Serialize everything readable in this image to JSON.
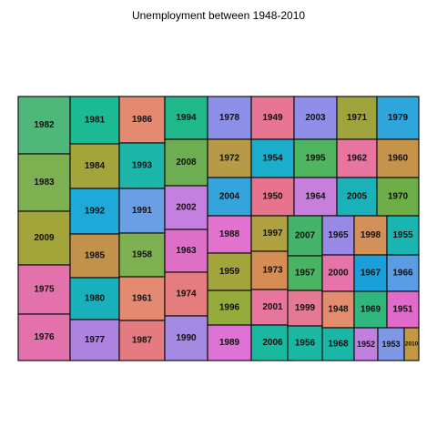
{
  "chart_data": {
    "type": "treemap",
    "title": "Unemployment between 1948-2010",
    "tiles": [
      {
        "label": "1982",
        "color": "#4FB77A"
      },
      {
        "label": "1983",
        "color": "#7DB050"
      },
      {
        "label": "2009",
        "color": "#A3A43A"
      },
      {
        "label": "1975",
        "color": "#E372AC"
      },
      {
        "label": "1976",
        "color": "#E372AC"
      },
      {
        "label": "1981",
        "color": "#1BBA93"
      },
      {
        "label": "1984",
        "color": "#A3A43A"
      },
      {
        "label": "1992",
        "color": "#1FA9D8"
      },
      {
        "label": "1985",
        "color": "#C2914C"
      },
      {
        "label": "1980",
        "color": "#18B0BA"
      },
      {
        "label": "1977",
        "color": "#AE83E0"
      },
      {
        "label": "1986",
        "color": "#E38A70"
      },
      {
        "label": "1993",
        "color": "#1CB5AA"
      },
      {
        "label": "1991",
        "color": "#6C9EE3"
      },
      {
        "label": "1958",
        "color": "#7DB050"
      },
      {
        "label": "1961",
        "color": "#E38A70"
      },
      {
        "label": "1987",
        "color": "#E37B80"
      },
      {
        "label": "1994",
        "color": "#1FB88B"
      },
      {
        "label": "2008",
        "color": "#6DAE52"
      },
      {
        "label": "2002",
        "color": "#C380DF"
      },
      {
        "label": "1963",
        "color": "#DE6FC6"
      },
      {
        "label": "1974",
        "color": "#E57C7E"
      },
      {
        "label": "1990",
        "color": "#A48AE0"
      },
      {
        "label": "1978",
        "color": "#8D90E8"
      },
      {
        "label": "1972",
        "color": "#B69A45"
      },
      {
        "label": "2004",
        "color": "#35A3DC"
      },
      {
        "label": "1988",
        "color": "#E173CF"
      },
      {
        "label": "1959",
        "color": "#A3A43A"
      },
      {
        "label": "1996",
        "color": "#93AC3B"
      },
      {
        "label": "1989",
        "color": "#DE72D5"
      },
      {
        "label": "1949",
        "color": "#E87593"
      },
      {
        "label": "1954",
        "color": "#1AADCC"
      },
      {
        "label": "1950",
        "color": "#E8738C"
      },
      {
        "label": "1997",
        "color": "#B0A03F"
      },
      {
        "label": "1973",
        "color": "#D58D55"
      },
      {
        "label": "2001",
        "color": "#E6769E"
      },
      {
        "label": "2006",
        "color": "#1AB89E"
      },
      {
        "label": "2003",
        "color": "#8F8EE9"
      },
      {
        "label": "1995",
        "color": "#4FB55E"
      },
      {
        "label": "1964",
        "color": "#C77FDC"
      },
      {
        "label": "2007",
        "color": "#44B46A"
      },
      {
        "label": "1957",
        "color": "#4AB463"
      },
      {
        "label": "1999",
        "color": "#E57892"
      },
      {
        "label": "1956",
        "color": "#1AB8A3"
      },
      {
        "label": "1965",
        "color": "#9A88E6"
      },
      {
        "label": "2000",
        "color": "#E774A8"
      },
      {
        "label": "1948",
        "color": "#E38C6E"
      },
      {
        "label": "1968",
        "color": "#1AB6A6"
      },
      {
        "label": "1971",
        "color": "#9EA43B"
      },
      {
        "label": "1962",
        "color": "#E775A0"
      },
      {
        "label": "2005",
        "color": "#1AB1B8"
      },
      {
        "label": "1998",
        "color": "#D39059"
      },
      {
        "label": "1967",
        "color": "#1A9FD9"
      },
      {
        "label": "1969",
        "color": "#30B77E"
      },
      {
        "label": "1952",
        "color": "#C17FE0"
      },
      {
        "label": "1979",
        "color": "#2EA6DC"
      },
      {
        "label": "1960",
        "color": "#C6934A"
      },
      {
        "label": "1970",
        "color": "#6DAE47"
      },
      {
        "label": "1955",
        "color": "#1AB5B1"
      },
      {
        "label": "1966",
        "color": "#5B9DE5"
      },
      {
        "label": "1951",
        "color": "#E06BCB"
      },
      {
        "label": "1953",
        "color": "#7E98E6"
      },
      {
        "label": "2010",
        "color": "#C39A42"
      }
    ]
  }
}
